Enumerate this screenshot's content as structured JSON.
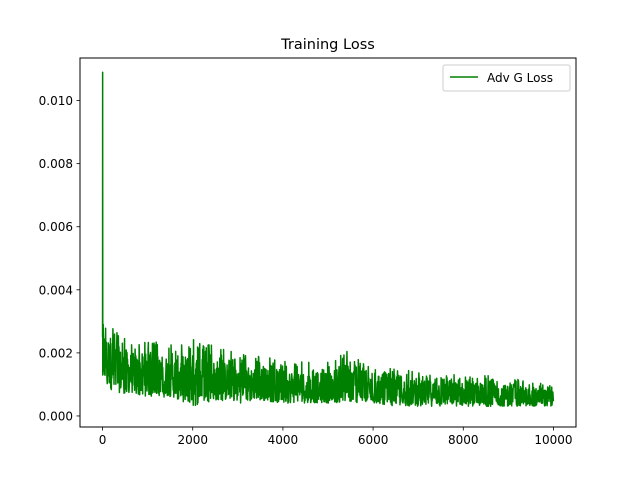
{
  "chart_data": {
    "type": "line",
    "title": "Training Loss",
    "xlabel": "",
    "ylabel": "",
    "xlim": [
      -500,
      10500
    ],
    "ylim": [
      -0.00035,
      0.01135
    ],
    "x_ticks": [
      0,
      2000,
      4000,
      6000,
      8000,
      10000
    ],
    "x_tick_labels": [
      "0",
      "2000",
      "4000",
      "6000",
      "8000",
      "10000"
    ],
    "y_ticks": [
      0.0,
      0.002,
      0.004,
      0.006,
      0.008,
      0.01
    ],
    "y_tick_labels": [
      "0.000",
      "0.002",
      "0.004",
      "0.006",
      "0.008",
      "0.010"
    ],
    "grid": false,
    "legend_position": "upper right",
    "series": [
      {
        "name": "Adv G Loss",
        "color": "#008000",
        "x": [
          0,
          10,
          20,
          40,
          60,
          100,
          150,
          200,
          300,
          400,
          500,
          700,
          1000,
          1500,
          2000,
          2500,
          3000,
          3500,
          4000,
          4500,
          5000,
          5400,
          6000,
          6500,
          7000,
          7500,
          8000,
          8500,
          9000,
          9500,
          10000
        ],
        "max": [
          0.0109,
          0.0035,
          0.0034,
          0.0032,
          0.003,
          0.0031,
          0.003,
          0.0032,
          0.0028,
          0.0026,
          0.0025,
          0.0024,
          0.0024,
          0.0023,
          0.0025,
          0.0022,
          0.002,
          0.0019,
          0.0018,
          0.0017,
          0.0017,
          0.0021,
          0.0015,
          0.0015,
          0.0014,
          0.0014,
          0.0013,
          0.0013,
          0.0012,
          0.0011,
          0.001
        ],
        "min": [
          0.0012,
          0.0013,
          0.0011,
          0.001,
          0.001,
          0.0009,
          0.0009,
          0.0008,
          0.0008,
          0.0007,
          0.0007,
          0.0007,
          0.0006,
          0.0006,
          0.0003,
          0.0005,
          0.0004,
          0.0005,
          0.0004,
          0.0004,
          0.0004,
          0.0004,
          0.0004,
          0.0003,
          0.0003,
          0.0003,
          0.0003,
          0.0003,
          0.0003,
          0.0003,
          0.0003
        ]
      }
    ]
  }
}
